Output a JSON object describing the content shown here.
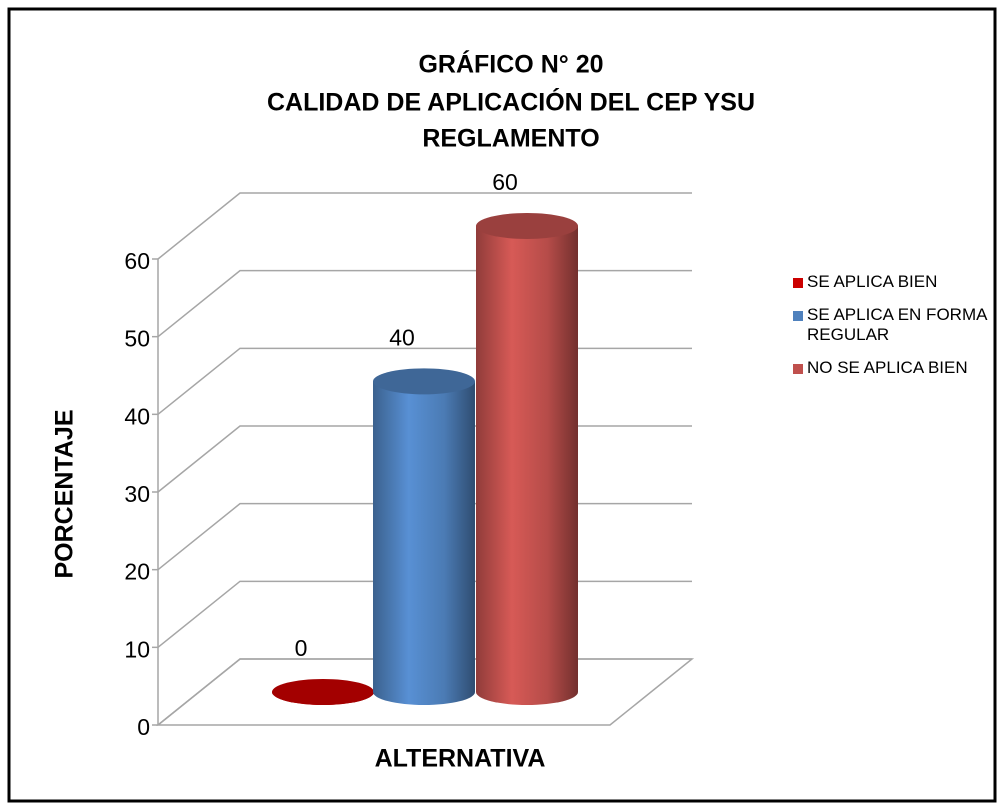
{
  "chart_data": {
    "type": "bar3d",
    "title": [
      "GRÁFICO N° 20",
      "CALIDAD DE APLICACIÓN  DEL CEP YSU",
      "REGLAMENTO"
    ],
    "y_label": "PORCENTAJE",
    "x_label": "ALTERNATIVA",
    "series": [
      {
        "name": "SE APLICA BIEN",
        "color": "#cc0000",
        "values": [
          0
        ]
      },
      {
        "name": "SE APLICA EN FORMA REGULAR",
        "color": "#4f81bd",
        "values": [
          40
        ]
      },
      {
        "name": "NO SE APLICA BIEN",
        "color": "#c0504d",
        "values": [
          60
        ]
      }
    ],
    "ylim": [
      0,
      60
    ],
    "yticks": [
      0,
      10,
      20,
      30,
      40,
      50,
      60
    ],
    "grid": true,
    "legend": "right"
  }
}
